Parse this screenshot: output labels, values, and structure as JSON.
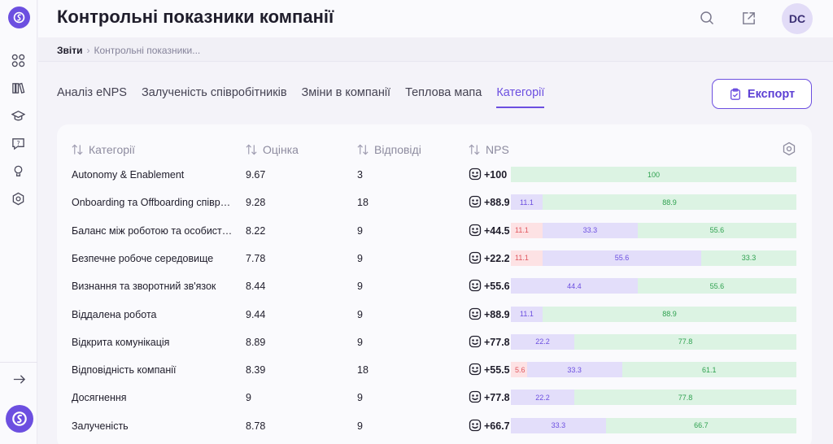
{
  "header": {
    "title": "Контрольні показники компанії",
    "avatar_initials": "DC"
  },
  "breadcrumb": {
    "root": "Звіти",
    "current": "Контрольні показники..."
  },
  "tabs": [
    {
      "label": "Аналіз eNPS",
      "active": false
    },
    {
      "label": "Залученість співробітників",
      "active": false
    },
    {
      "label": "Зміни в компанії",
      "active": false
    },
    {
      "label": "Теплова мапа",
      "active": false
    },
    {
      "label": "Категорії",
      "active": true
    }
  ],
  "export_label": "Експорт",
  "table": {
    "columns": {
      "category": "Категорії",
      "score": "Оцінка",
      "responses": "Відповіді",
      "nps": "NPS"
    },
    "rows": [
      {
        "name": "Autonomy & Enablement",
        "score": "9.67",
        "responses": "3",
        "nps": "+100",
        "detractors": 0,
        "passives": 0,
        "promoters": 100,
        "labels": [
          "",
          "",
          "100"
        ]
      },
      {
        "name": "Onboarding та Offboarding співробітників",
        "score": "9.28",
        "responses": "18",
        "nps": "+88.9",
        "detractors": 0,
        "passives": 11.1,
        "promoters": 88.9,
        "labels": [
          "",
          "11.1",
          "88.9"
        ]
      },
      {
        "name": "Баланс між роботою та особистим життям",
        "score": "8.22",
        "responses": "9",
        "nps": "+44.5",
        "detractors": 11.1,
        "passives": 33.3,
        "promoters": 55.6,
        "labels": [
          "11.1",
          "33.3",
          "55.6"
        ]
      },
      {
        "name": "Безпечне робоче середовище",
        "score": "7.78",
        "responses": "9",
        "nps": "+22.2",
        "detractors": 11.1,
        "passives": 55.6,
        "promoters": 33.3,
        "labels": [
          "11.1",
          "55.6",
          "33.3"
        ]
      },
      {
        "name": "Визнання та зворотний зв'язок",
        "score": "8.44",
        "responses": "9",
        "nps": "+55.6",
        "detractors": 0,
        "passives": 44.4,
        "promoters": 55.6,
        "labels": [
          "",
          "44.4",
          "55.6"
        ]
      },
      {
        "name": "Віддалена робота",
        "score": "9.44",
        "responses": "9",
        "nps": "+88.9",
        "detractors": 0,
        "passives": 11.1,
        "promoters": 88.9,
        "labels": [
          "",
          "11.1",
          "88.9"
        ]
      },
      {
        "name": "Відкрита комунікація",
        "score": "8.89",
        "responses": "9",
        "nps": "+77.8",
        "detractors": 0,
        "passives": 22.2,
        "promoters": 77.8,
        "labels": [
          "",
          "22.2",
          "77.8"
        ]
      },
      {
        "name": "Відповідність компанії",
        "score": "8.39",
        "responses": "18",
        "nps": "+55.5",
        "detractors": 5.6,
        "passives": 33.3,
        "promoters": 61.1,
        "labels": [
          "5.6",
          "33.3",
          "61.1"
        ]
      },
      {
        "name": "Досягнення",
        "score": "9",
        "responses": "9",
        "nps": "+77.8",
        "detractors": 0,
        "passives": 22.2,
        "promoters": 77.8,
        "labels": [
          "",
          "22.2",
          "77.8"
        ]
      },
      {
        "name": "Залученість",
        "score": "8.78",
        "responses": "9",
        "nps": "+66.7",
        "detractors": 0,
        "passives": 33.3,
        "promoters": 66.7,
        "labels": [
          "",
          "33.3",
          "66.7"
        ]
      }
    ]
  },
  "colors": {
    "accent": "#6c4fe0",
    "detractor": "#fde2e4",
    "passive": "#e3defa",
    "promoter": "#dcf3e3"
  }
}
